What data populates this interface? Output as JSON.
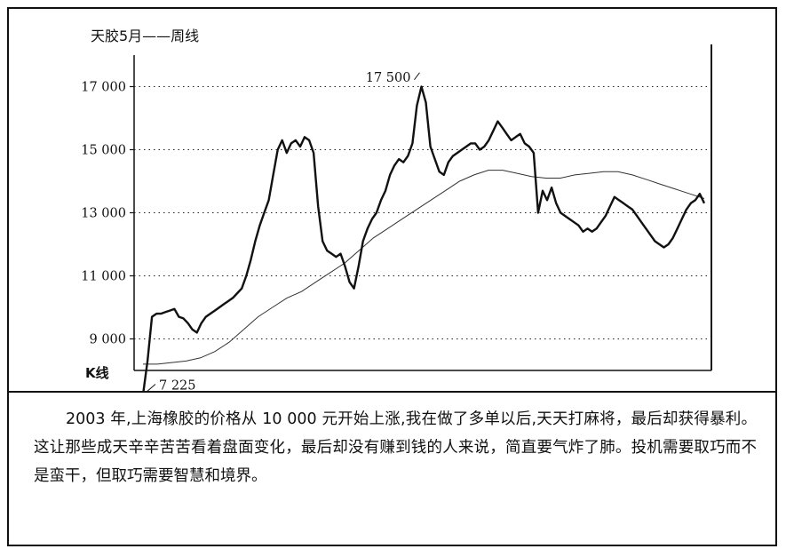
{
  "chart_data": {
    "type": "line",
    "title": "天胶5月——周线",
    "y_axis_label": "K线",
    "ylim": [
      8000,
      18000
    ],
    "y_ticks": [
      {
        "value": 17000,
        "label": "17 000"
      },
      {
        "value": 15000,
        "label": "15 000"
      },
      {
        "value": 13000,
        "label": "13 000"
      },
      {
        "value": 11000,
        "label": "11 000"
      },
      {
        "value": 9000,
        "label": "9 000"
      }
    ],
    "grid": "dotted horizontal",
    "annotations": [
      {
        "label": "17 500",
        "value": 17500
      },
      {
        "label": "7 225",
        "value": 7225
      }
    ],
    "series": [
      {
        "kind": "weekly price (candlestick)",
        "values": [
          7225,
          8300,
          9700,
          9800,
          9800,
          9850,
          9900,
          9950,
          9700,
          9650,
          9500,
          9300,
          9200,
          9500,
          9700,
          9800,
          9900,
          10000,
          10100,
          10200,
          10300,
          10450,
          10600,
          11000,
          11500,
          12100,
          12600,
          13000,
          13400,
          14200,
          15000,
          15300,
          14900,
          15200,
          15300,
          15100,
          15400,
          15300,
          14900,
          13200,
          12100,
          11800,
          11700,
          11600,
          11700,
          11300,
          10800,
          10600,
          11300,
          12100,
          12500,
          12800,
          13000,
          13400,
          13700,
          14200,
          14500,
          14700,
          14600,
          14800,
          15200,
          16400,
          17000,
          16500,
          15100,
          14700,
          14300,
          14200,
          14600,
          14800,
          14900,
          15000,
          15100,
          15200,
          15200,
          15000,
          15100,
          15300,
          15600,
          15900,
          15700,
          15500,
          15300,
          15400,
          15500,
          15200,
          15100,
          14900,
          13000,
          13700,
          13400,
          13800,
          13300,
          13000,
          12900,
          12800,
          12700,
          12600,
          12400,
          12500,
          12400,
          12500,
          12700,
          12900,
          13200,
          13500,
          13400,
          13300,
          13200,
          13100,
          12900,
          12700,
          12500,
          12300,
          12100,
          12000,
          11900,
          12000,
          12200,
          12500,
          12800,
          13100,
          13300,
          13400,
          13600,
          13300
        ]
      },
      {
        "kind": "long-term moving average",
        "values": [
          8200,
          8200,
          8250,
          8300,
          8400,
          8600,
          8900,
          9300,
          9700,
          10000,
          10300,
          10500,
          10800,
          11100,
          11400,
          11800,
          12200,
          12500,
          12800,
          13100,
          13400,
          13700,
          14000,
          14200,
          14350,
          14350,
          14250,
          14150,
          14100,
          14100,
          14200,
          14250,
          14300,
          14300,
          14200,
          14050,
          13900,
          13750,
          13600,
          13450
        ]
      }
    ]
  },
  "caption": {
    "text": "2003 年,上海橡胶的价格从 10 000 元开始上涨,我在做了多单以后,天天打麻将，最后却获得暴利。这让那些成天辛辛苦苦看着盘面变化，最后却没有赚到钱的人来说，简直要气炸了肺。投机需要取巧而不是蛮干，但取巧需要智慧和境界。"
  }
}
